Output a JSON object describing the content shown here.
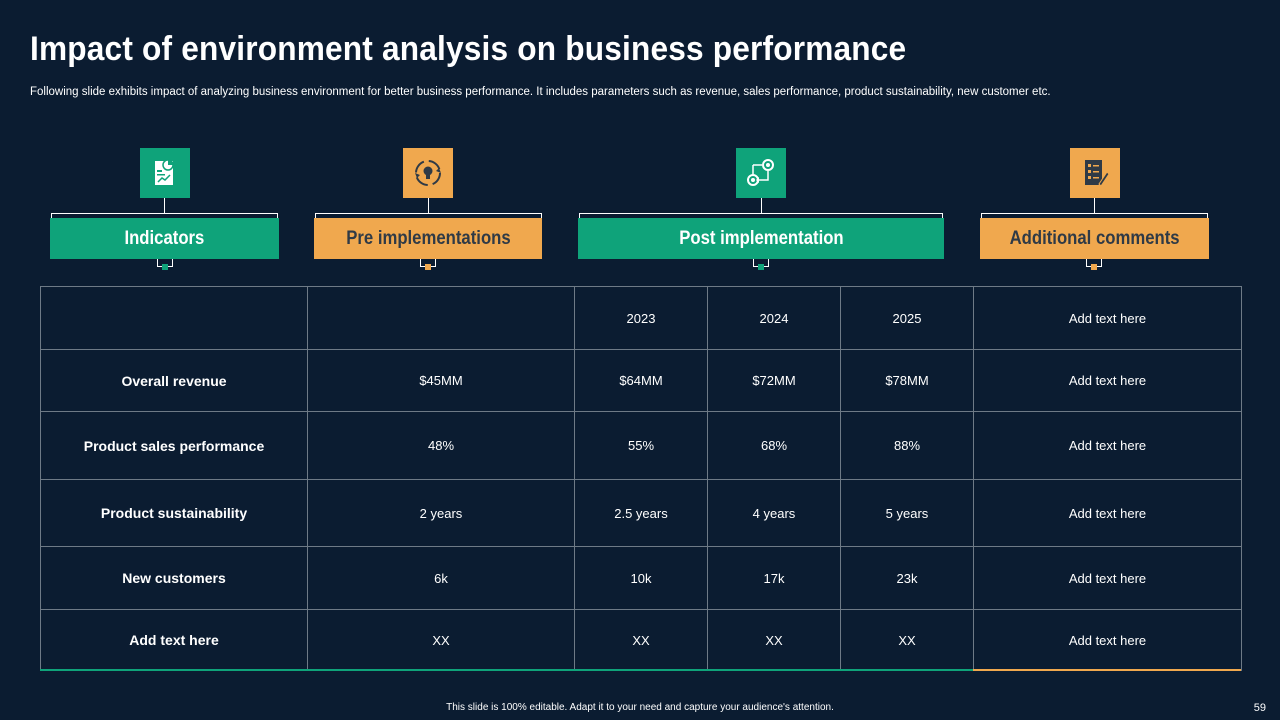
{
  "title": "Impact of environment analysis on business performance",
  "subtitle": "Following slide exhibits impact of analyzing business environment for better business performance. It includes parameters such as revenue, sales performance, product sustainability, new customer etc.",
  "headers": [
    {
      "label": "Indicators",
      "color": "#0fa37a",
      "icon": "document-chart-icon"
    },
    {
      "label": "Pre implementations",
      "color": "#f0a84e",
      "icon": "cycle-bulb-icon"
    },
    {
      "label": "Post implementation",
      "color": "#0fa37a",
      "icon": "process-flow-icon"
    },
    {
      "label": "Additional comments",
      "color": "#f0a84e",
      "icon": "checklist-pen-icon"
    }
  ],
  "table": {
    "year_row": [
      "",
      "",
      "2023",
      "2024",
      "2025",
      "Add text here"
    ],
    "rows": [
      {
        "indicator": "Overall revenue",
        "pre": "$45MM",
        "y2023": "$64MM",
        "y2024": "$72MM",
        "y2025": "$78MM",
        "comment": "Add text here"
      },
      {
        "indicator": "Product sales performance",
        "pre": "48%",
        "y2023": "55%",
        "y2024": "68%",
        "y2025": "88%",
        "comment": "Add text here"
      },
      {
        "indicator": "Product sustainability",
        "pre": "2 years",
        "y2023": "2.5 years",
        "y2024": "4 years",
        "y2025": "5 years",
        "comment": "Add text here"
      },
      {
        "indicator": "New customers",
        "pre": "6k",
        "y2023": "10k",
        "y2024": "17k",
        "y2025": "23k",
        "comment": "Add text here"
      },
      {
        "indicator": "Add text here",
        "pre": "XX",
        "y2023": "XX",
        "y2024": "XX",
        "y2025": "XX",
        "comment": "Add text here"
      }
    ]
  },
  "footer": "This slide is 100% editable.  Adapt it to your need and capture your audience's attention.",
  "page_number": "59"
}
